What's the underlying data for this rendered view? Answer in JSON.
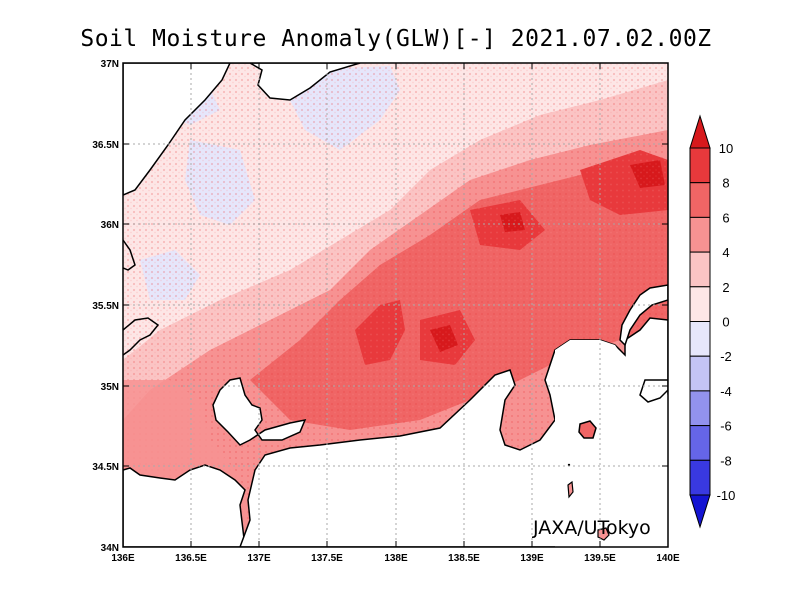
{
  "title": "Soil Moisture Anomaly(GLW)[-] 2021.07.02.00Z",
  "credit": "JAXA/UTokyo",
  "map": {
    "lon_range": [
      136,
      140
    ],
    "lat_range": [
      34,
      37
    ],
    "lon_ticks": [
      "136E",
      "136.5E",
      "137E",
      "137.5E",
      "138E",
      "138.5E",
      "139E",
      "139.5E",
      "140E"
    ],
    "lat_ticks": [
      "34N",
      "34.5N",
      "35N",
      "35.5N",
      "36N",
      "36.5N",
      "37N"
    ],
    "grid": "dotted"
  },
  "colorbar": {
    "labels": [
      "10",
      "8",
      "6",
      "4",
      "2",
      "0",
      "-2",
      "-4",
      "-6",
      "-8",
      "-10"
    ],
    "colors": [
      "#d7191c",
      "#e8393c",
      "#f06565",
      "#f79292",
      "#fbc4c4",
      "#fde6e6",
      "#e6e6fb",
      "#c4c4f5",
      "#9292ee",
      "#6565e8",
      "#3939e0",
      "#1414d2"
    ]
  }
}
